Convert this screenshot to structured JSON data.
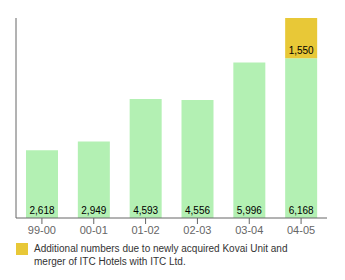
{
  "chart_data": {
    "type": "bar",
    "categories": [
      "99-00",
      "00-01",
      "01-02",
      "02-03",
      "03-04",
      "04-05"
    ],
    "series": [
      {
        "color": "#b3f0b3",
        "values": [
          2618,
          2949,
          4593,
          4556,
          5996,
          6168
        ],
        "value_labels": [
          "2,618",
          "2,949",
          "4,593",
          "4,556",
          "5,996",
          "6,168"
        ]
      },
      {
        "name": "Additional numbers due to newly acquired Kovai Unit and\nmerger of ITC Hotels with ITC Ltd.",
        "color": "#e8c837",
        "values": [
          null,
          null,
          null,
          null,
          null,
          1550
        ],
        "value_labels": [
          null,
          null,
          null,
          null,
          null,
          "1,550"
        ]
      }
    ],
    "ylim": [
      0,
      7718
    ],
    "stacked": true,
    "data_labels": true,
    "tick_labels": "x",
    "legend": "lower left"
  }
}
